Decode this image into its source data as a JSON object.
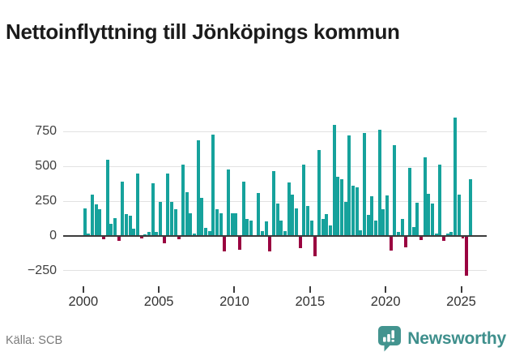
{
  "header": {
    "title": "Nettoinflyttning till Jönköpings kommun"
  },
  "footer": {
    "source": "Källa: SCB",
    "brand": "Newsworthy"
  },
  "colors": {
    "positive_bar": "#16a29c",
    "negative_bar": "#9a0340",
    "brand_teal": "#3e8f8c",
    "axis": "#3c3c3c",
    "gridline": "#e2e2e2",
    "title_text": "#1b1b1b",
    "muted_text": "#7a7a7a"
  },
  "chart_data": {
    "type": "bar",
    "title": "Nettoinflyttning till Jönköpings kommun",
    "xlabel": "",
    "ylabel": "",
    "frequency": "quarterly",
    "x_start": "2000-Q1",
    "x_end": "2025-Q3",
    "x_tick_labels": [
      2000,
      2005,
      2010,
      2015,
      2020,
      2025
    ],
    "y_ticks": [
      750,
      500,
      250,
      0,
      -250
    ],
    "ylim": [
      -330,
      880
    ],
    "grid": true,
    "legend": false,
    "series": [
      {
        "name": "Nettoinflyttning",
        "values": [
          200,
          20,
          300,
          230,
          190,
          -25,
          545,
          90,
          130,
          -35,
          390,
          155,
          145,
          55,
          450,
          -20,
          10,
          30,
          380,
          30,
          245,
          -50,
          450,
          245,
          195,
          -25,
          515,
          315,
          165,
          15,
          690,
          275,
          60,
          35,
          730,
          195,
          165,
          -110,
          475,
          165,
          165,
          -100,
          390,
          120,
          110,
          5,
          310,
          35,
          105,
          -110,
          465,
          235,
          110,
          35,
          385,
          300,
          200,
          -90,
          515,
          215,
          110,
          -145,
          615,
          120,
          155,
          75,
          800,
          425,
          410,
          245,
          720,
          360,
          350,
          40,
          740,
          150,
          285,
          110,
          765,
          190,
          290,
          -105,
          655,
          30,
          120,
          -80,
          490,
          65,
          240,
          -30,
          565,
          305,
          235,
          20,
          510,
          -35,
          20,
          30,
          850,
          300,
          -20,
          -285,
          410
        ]
      }
    ]
  }
}
